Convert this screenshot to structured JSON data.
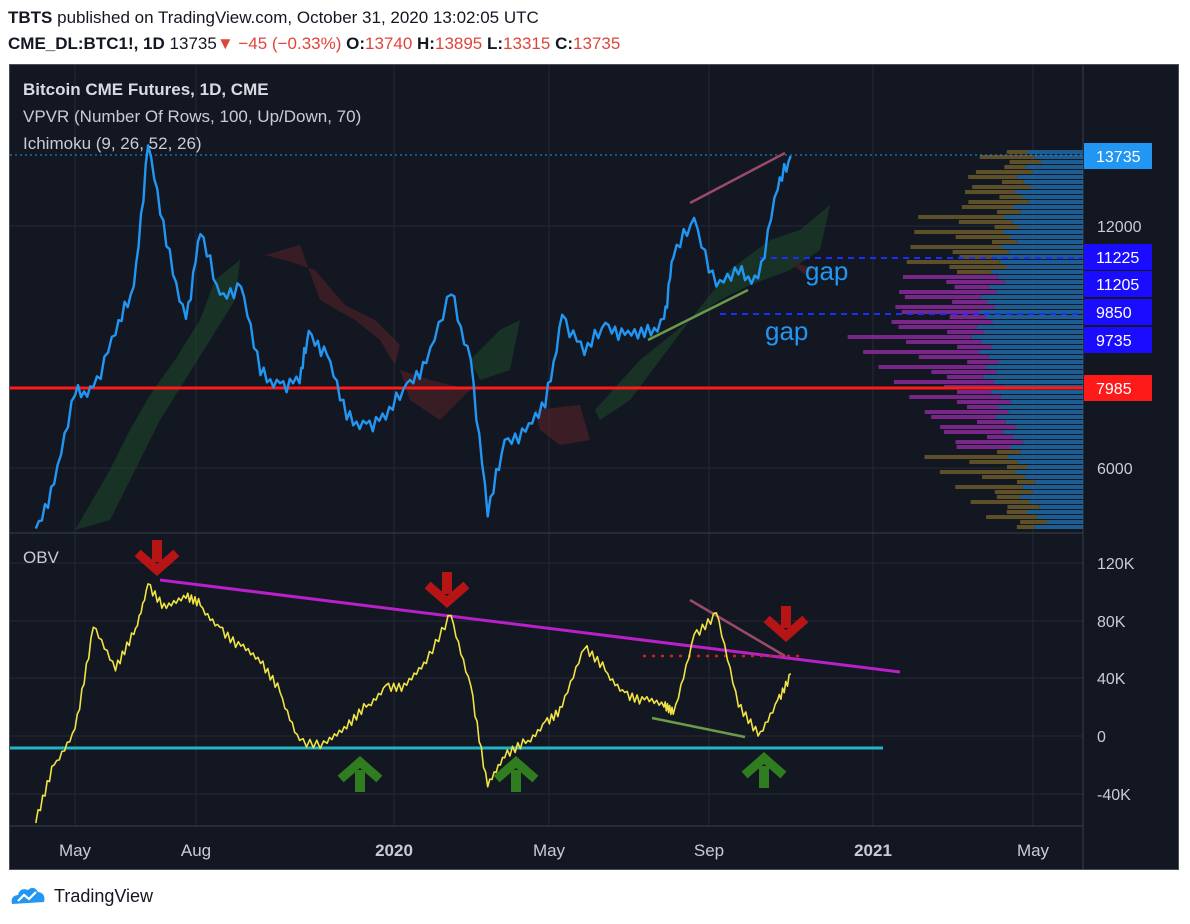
{
  "header": {
    "publisher": "TBTS",
    "published_text": " published on TradingView.com, October 31, 2020 13:02:05 UTC",
    "symbol": "CME_DL:BTC1!, 1D",
    "last": "13735",
    "change": "−45 (−0.33%)",
    "o_label": "O:",
    "o_value": "13740",
    "h_label": "H:",
    "h_value": "13895",
    "l_label": "L:",
    "l_value": "13315",
    "c_label": "C:",
    "c_value": "13735"
  },
  "legend": {
    "title": "Bitcoin CME Futures, 1D, CME",
    "vpvr": "VPVR (Number Of Rows, 100, Up/Down, 70)",
    "ichimoku": "Ichimoku (9, 26, 52, 26)",
    "obv": "OBV"
  },
  "annotations": {
    "gap1": "gap",
    "gap2": "gap"
  },
  "footer": {
    "brand": "TradingView"
  },
  "colors": {
    "background": "#131722",
    "price": "#2196f3",
    "obv": "#f0e442",
    "support_red": "#ff1a1a",
    "obv_support": "#22b5c5",
    "trendline": "#b820c8",
    "arrow_down": "#b71515",
    "arrow_up": "#2f7d1f"
  },
  "chart_data": [
    {
      "type": "line",
      "title": "Bitcoin CME Futures, 1D, CME",
      "series": [
        {
          "name": "Bitcoin CME Futures",
          "x": [
            "2019-04-01",
            "2019-04-15",
            "2019-05-01",
            "2019-05-15",
            "2019-06-01",
            "2019-06-15",
            "2019-06-26",
            "2019-07-10",
            "2019-07-25",
            "2019-08-05",
            "2019-08-20",
            "2019-09-05",
            "2019-09-20",
            "2019-10-05",
            "2019-10-20",
            "2019-10-27",
            "2019-11-10",
            "2019-11-25",
            "2019-12-10",
            "2019-12-25",
            "2020-01-10",
            "2020-01-25",
            "2020-02-13",
            "2020-02-28",
            "2020-03-12",
            "2020-03-25",
            "2020-04-10",
            "2020-04-25",
            "2020-05-08",
            "2020-05-25",
            "2020-06-10",
            "2020-06-25",
            "2020-07-10",
            "2020-07-25",
            "2020-08-01",
            "2020-08-17",
            "2020-09-03",
            "2020-09-20",
            "2020-10-05",
            "2020-10-20",
            "2020-10-30"
          ],
          "y": [
            4500,
            5600,
            7800,
            8000,
            9300,
            10500,
            14000,
            11500,
            9700,
            11800,
            10300,
            10500,
            8300,
            8100,
            8100,
            9400,
            8800,
            7200,
            7100,
            7200,
            8100,
            8600,
            10300,
            8700,
            4800,
            6700,
            6900,
            7500,
            9800,
            8800,
            9600,
            9300,
            9250,
            9700,
            11200,
            12200,
            10500,
            10800,
            10700,
            12900,
            13735
          ]
        }
      ],
      "y_ticks": [
        "6000",
        "12000"
      ],
      "price_labels": [
        "13735",
        "11225",
        "11205",
        "9850",
        "9735",
        "7985"
      ],
      "horizontal_levels": [
        7985,
        11225,
        11205,
        9850,
        9735
      ],
      "ylim": [
        4300,
        14500
      ]
    },
    {
      "type": "line",
      "title": "OBV",
      "series": [
        {
          "name": "OBV",
          "x": [
            "2019-04-01",
            "2019-04-15",
            "2019-05-01",
            "2019-05-15",
            "2019-06-01",
            "2019-06-15",
            "2019-06-26",
            "2019-07-10",
            "2019-07-25",
            "2019-08-05",
            "2019-08-20",
            "2019-09-05",
            "2019-09-20",
            "2019-10-05",
            "2019-10-20",
            "2019-11-10",
            "2019-11-25",
            "2019-12-10",
            "2019-12-25",
            "2020-01-10",
            "2020-01-25",
            "2020-02-13",
            "2020-02-28",
            "2020-03-12",
            "2020-03-25",
            "2020-04-10",
            "2020-04-25",
            "2020-05-08",
            "2020-05-25",
            "2020-06-10",
            "2020-06-25",
            "2020-07-10",
            "2020-07-25",
            "2020-08-01",
            "2020-08-17",
            "2020-09-03",
            "2020-09-20",
            "2020-10-05",
            "2020-10-20",
            "2020-10-30"
          ],
          "y": [
            -60,
            -20,
            5,
            75,
            45,
            70,
            105,
            88,
            95,
            90,
            75,
            62,
            50,
            30,
            -3,
            -5,
            5,
            20,
            35,
            35,
            50,
            83,
            35,
            -35,
            -15,
            -5,
            10,
            20,
            60,
            45,
            30,
            25,
            20,
            15,
            70,
            85,
            20,
            0,
            25,
            43
          ]
        }
      ],
      "y_ticks": [
        "120K",
        "80K",
        "40K",
        "0",
        "-40K"
      ],
      "ylim": [
        -62,
        130
      ]
    }
  ],
  "x_axis": {
    "tick_labels": [
      "May",
      "Aug",
      "2020",
      "May",
      "Sep",
      "2021",
      "May"
    ]
  }
}
